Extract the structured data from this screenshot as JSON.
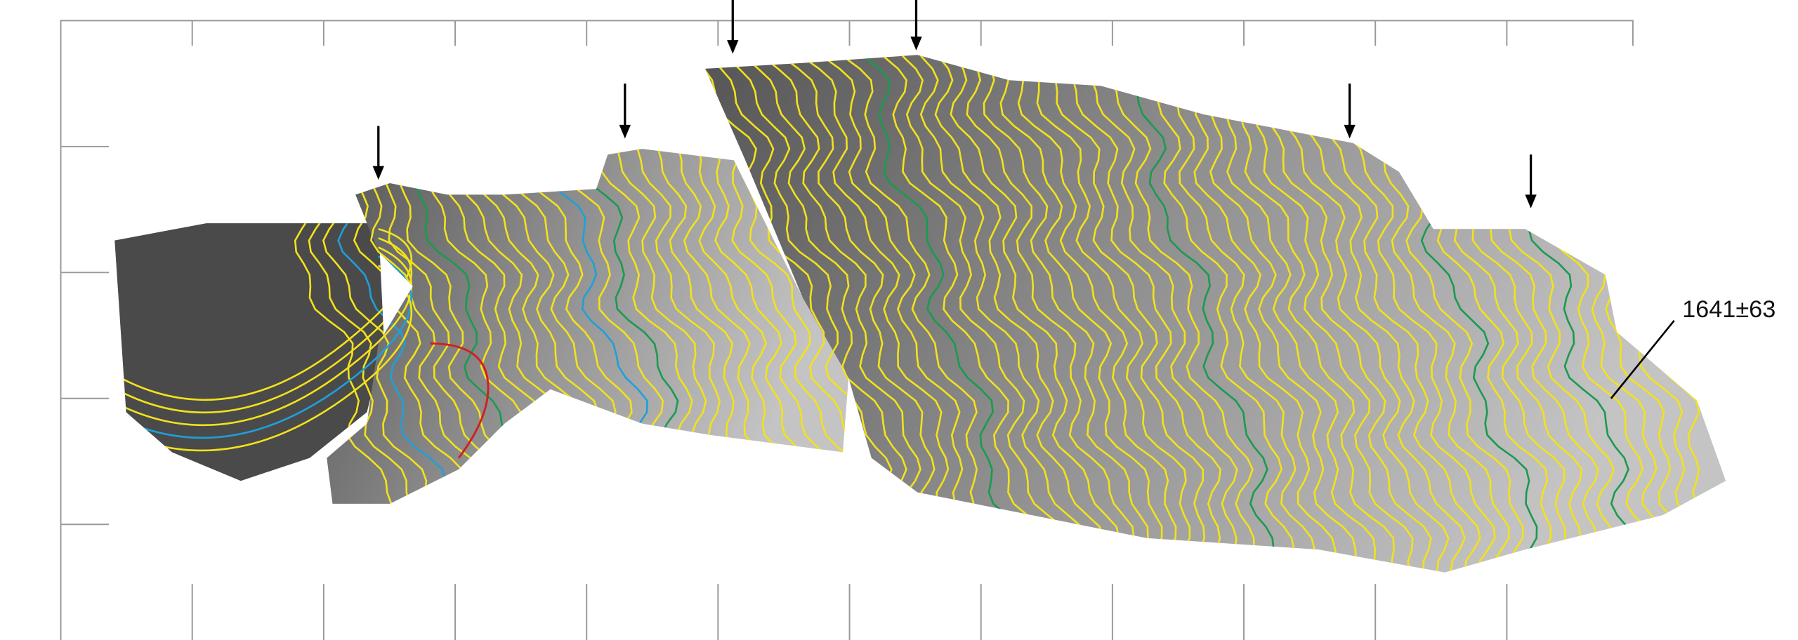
{
  "annotations": [
    {
      "label": "1641±63"
    }
  ]
}
